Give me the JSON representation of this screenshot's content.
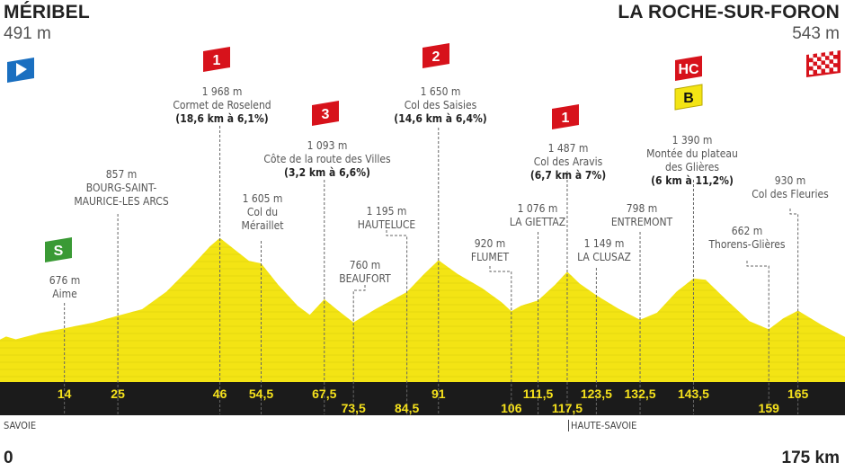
{
  "start": {
    "town": "MÉRIBEL",
    "altitude": "491 m"
  },
  "finish": {
    "town": "LA ROCHE-SUR-FORON",
    "altitude": "543 m"
  },
  "departments": [
    "SAVOIE",
    "HAUTE-SAVOIE"
  ],
  "axis": {
    "start": "0",
    "end": "175 km"
  },
  "colors": {
    "profile": "#f3e414",
    "band": "#1b1b1b",
    "km_text": "#f5e11c",
    "climb_flag": "#d7121b",
    "sprint_flag": "#3a9a35",
    "start_flag": "#1a6fc0",
    "bonus_flag": "#f3e414"
  },
  "flags": {
    "start": "start-flag-icon",
    "finish": "checkered-finish-flag-icon",
    "sprint": "S",
    "bonus": "B"
  },
  "chart_data": {
    "type": "area",
    "xlabel": "",
    "ylabel": "",
    "xlim": [
      0,
      175
    ],
    "profile": [
      [
        0,
        491
      ],
      [
        2,
        560
      ],
      [
        4,
        520
      ],
      [
        9,
        610
      ],
      [
        14,
        676
      ],
      [
        20,
        760
      ],
      [
        25,
        857
      ],
      [
        30,
        950
      ],
      [
        35,
        1200
      ],
      [
        40,
        1550
      ],
      [
        44,
        1850
      ],
      [
        46,
        1968
      ],
      [
        50,
        1750
      ],
      [
        52,
        1640
      ],
      [
        54.5,
        1605
      ],
      [
        58,
        1300
      ],
      [
        62,
        1000
      ],
      [
        64.5,
        870
      ],
      [
        67.5,
        1093
      ],
      [
        70,
        950
      ],
      [
        73.5,
        760
      ],
      [
        78,
        950
      ],
      [
        84.5,
        1195
      ],
      [
        88,
        1450
      ],
      [
        91,
        1650
      ],
      [
        95,
        1450
      ],
      [
        100,
        1250
      ],
      [
        104,
        1050
      ],
      [
        106,
        920
      ],
      [
        108,
        1000
      ],
      [
        111.5,
        1076
      ],
      [
        115,
        1300
      ],
      [
        117.5,
        1487
      ],
      [
        120,
        1320
      ],
      [
        123.5,
        1149
      ],
      [
        128,
        960
      ],
      [
        132.5,
        798
      ],
      [
        136,
        900
      ],
      [
        140,
        1200
      ],
      [
        143.5,
        1390
      ],
      [
        146,
        1370
      ],
      [
        150,
        1100
      ],
      [
        155,
        780
      ],
      [
        159,
        662
      ],
      [
        162,
        820
      ],
      [
        165,
        930
      ],
      [
        170,
        720
      ],
      [
        175,
        543
      ]
    ],
    "km_ticks": [
      "14",
      "25",
      "46",
      "54,5",
      "67,5",
      "73,5",
      "84,5",
      "91",
      "106",
      "111,5",
      "117,5",
      "123,5",
      "132,5",
      "143,5",
      "159",
      "165"
    ],
    "points": [
      {
        "km": 14,
        "altitude": "676 m",
        "name": "Aime",
        "category": "S"
      },
      {
        "km": 25,
        "altitude": "857 m",
        "name": "BOURG-SAINT-",
        "name2": "MAURICE-LES ARCS"
      },
      {
        "km": 46,
        "altitude": "1 968 m",
        "name": "Cormet de Roselend",
        "climb": "(18,6 km à 6,1%)",
        "category": "1"
      },
      {
        "km": 54.5,
        "altitude": "1 605 m",
        "name": "Col du",
        "name2": "Méraillet"
      },
      {
        "km": 67.5,
        "altitude": "1 093 m",
        "name": "Côte de la route des Villes",
        "climb": "(3,2 km à 6,6%)",
        "category": "3"
      },
      {
        "km": 73.5,
        "altitude": "760 m",
        "name": "BEAUFORT"
      },
      {
        "km": 84.5,
        "altitude": "1 195 m",
        "name": "HAUTELUCE"
      },
      {
        "km": 91,
        "altitude": "1 650 m",
        "name": "Col des Saisies",
        "climb": "(14,6 km à 6,4%)",
        "category": "2"
      },
      {
        "km": 106,
        "altitude": "920 m",
        "name": "FLUMET"
      },
      {
        "km": 111.5,
        "altitude": "1 076 m",
        "name": "LA GIETTAZ"
      },
      {
        "km": 117.5,
        "altitude": "1 487 m",
        "name": "Col des Aravis",
        "climb": "(6,7 km à 7%)",
        "category": "1"
      },
      {
        "km": 123.5,
        "altitude": "1 149 m",
        "name": "LA CLUSAZ"
      },
      {
        "km": 132.5,
        "altitude": "798 m",
        "name": "ENTREMONT"
      },
      {
        "km": 143.5,
        "altitude": "1 390 m",
        "name": "Montée du plateau",
        "name2": "des Glières",
        "climb": "(6 km à 11,2%)",
        "category": "HC",
        "bonus": "B"
      },
      {
        "km": 159,
        "altitude": "662 m",
        "name": "Thorens-Glières"
      },
      {
        "km": 165,
        "altitude": "930 m",
        "name": "Col des Fleuries"
      }
    ]
  }
}
